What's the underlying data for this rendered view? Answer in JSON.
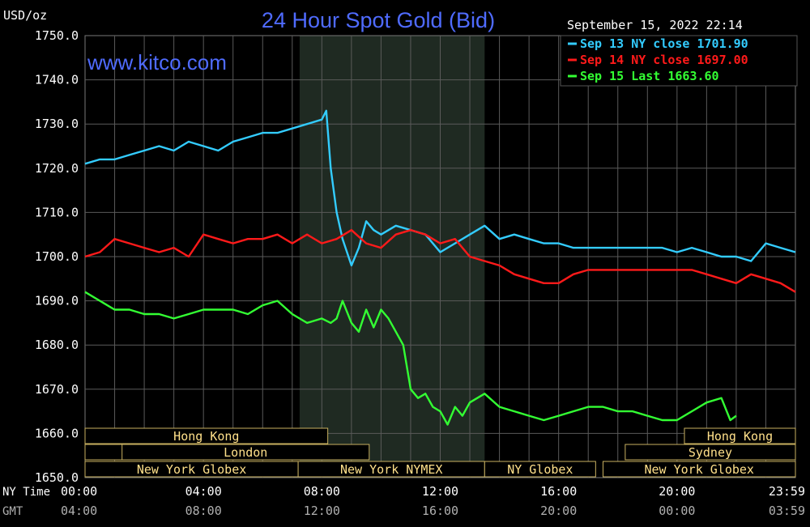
{
  "chart_data": {
    "type": "line",
    "title": "24 Hour Spot Gold (Bid)",
    "ylabel": "USD/oz",
    "watermark": "www.kitco.com",
    "timestamp": "September 15, 2022 22:14",
    "ylim": [
      1650,
      1750
    ],
    "y_ticks": [
      "1750.0",
      "1740.0",
      "1730.0",
      "1720.0",
      "1710.0",
      "1700.0",
      "1690.0",
      "1680.0",
      "1670.0",
      "1660.0",
      "1650.0"
    ],
    "xlim": [
      0,
      24
    ],
    "x_ticks": [
      0,
      4,
      8,
      12,
      16,
      20,
      23.983
    ],
    "x_axis_rows": [
      {
        "label": "NY Time",
        "ticks": [
          "00:00",
          "04:00",
          "08:00",
          "12:00",
          "16:00",
          "20:00",
          "23:59"
        ]
      },
      {
        "label": "GMT",
        "ticks": [
          "04:00",
          "08:00",
          "12:00",
          "16:00",
          "20:00",
          "00:00",
          "03:59"
        ]
      }
    ],
    "legend": [
      {
        "text": "Sep 13 NY close 1701.90",
        "color": "#33ccff"
      },
      {
        "text": "Sep 14 NY close 1697.00",
        "color": "#ff1a1a"
      },
      {
        "text": "Sep 15 Last 1663.60",
        "color": "#33ff33"
      }
    ],
    "legend_position": "top-right",
    "grid": true,
    "shaded_session": [
      7.25,
      13.5
    ],
    "sessions": [
      {
        "label": "Hong Kong",
        "row": 0,
        "start": 0,
        "end": 8.2
      },
      {
        "label": "London",
        "row": 1,
        "start": 0,
        "end": 9.6,
        "divider": 1.25,
        "text_at": 9.5
      },
      {
        "label": "New York Globex",
        "row": 2,
        "start": 0,
        "end": 7.2
      },
      {
        "label": "New York NYMEX",
        "row": 2,
        "start": 7.2,
        "end": 13.5
      },
      {
        "label": "NY Globex",
        "row": 2,
        "start": 13.5,
        "end": 17.25
      },
      {
        "label": "New York Globex",
        "row": 2,
        "start": 17.5,
        "end": 24
      },
      {
        "label": "Sydney",
        "row": 1,
        "start": 18.25,
        "end": 24
      },
      {
        "label": "Hong Kong",
        "row": 0,
        "start": 20.25,
        "end": 24
      }
    ],
    "series": [
      {
        "name": "Sep 13",
        "color": "#33ccff",
        "x": [
          0,
          0.5,
          1,
          1.5,
          2,
          2.5,
          3,
          3.5,
          4,
          4.5,
          5,
          5.5,
          6,
          6.5,
          7,
          7.5,
          8,
          8.15,
          8.3,
          8.5,
          8.7,
          9,
          9.25,
          9.5,
          9.75,
          10,
          10.5,
          11,
          11.5,
          12,
          12.5,
          13,
          13.5,
          14,
          14.5,
          15,
          15.5,
          16,
          16.5,
          17,
          17.5,
          18,
          18.5,
          19,
          19.5,
          20,
          20.5,
          21,
          21.5,
          22,
          22.5,
          23,
          23.5,
          24
        ],
        "y": [
          1721,
          1722,
          1722,
          1723,
          1724,
          1725,
          1724,
          1726,
          1725,
          1724,
          1726,
          1727,
          1728,
          1728,
          1729,
          1730,
          1731,
          1733,
          1720,
          1710,
          1704,
          1698,
          1702,
          1708,
          1706,
          1705,
          1707,
          1706,
          1705,
          1701,
          1703,
          1705,
          1707,
          1704,
          1705,
          1704,
          1703,
          1703,
          1702,
          1702,
          1702,
          1702,
          1702,
          1702,
          1702,
          1701,
          1702,
          1701,
          1700,
          1700,
          1699,
          1703,
          1702,
          1701
        ]
      },
      {
        "name": "Sep 14",
        "color": "#ff1a1a",
        "x": [
          0,
          0.5,
          1,
          1.5,
          2,
          2.5,
          3,
          3.5,
          4,
          4.5,
          5,
          5.5,
          6,
          6.5,
          7,
          7.5,
          8,
          8.5,
          9,
          9.5,
          10,
          10.5,
          11,
          11.5,
          12,
          12.5,
          13,
          13.5,
          14,
          14.5,
          15,
          15.5,
          16,
          16.5,
          17,
          17.5,
          18,
          18.5,
          19,
          19.5,
          20,
          20.5,
          21,
          21.5,
          22,
          22.5,
          23,
          23.5,
          24
        ],
        "y": [
          1700,
          1701,
          1704,
          1703,
          1702,
          1701,
          1702,
          1700,
          1705,
          1704,
          1703,
          1704,
          1704,
          1705,
          1703,
          1705,
          1703,
          1704,
          1706,
          1703,
          1702,
          1705,
          1706,
          1705,
          1703,
          1704,
          1700,
          1699,
          1698,
          1696,
          1695,
          1694,
          1694,
          1696,
          1697,
          1697,
          1697,
          1697,
          1697,
          1697,
          1697,
          1697,
          1696,
          1695,
          1694,
          1696,
          1695,
          1694,
          1692
        ]
      },
      {
        "name": "Sep 15",
        "color": "#33ff33",
        "x": [
          0,
          0.5,
          1,
          1.5,
          2,
          2.5,
          3,
          3.5,
          4,
          4.5,
          5,
          5.5,
          6,
          6.5,
          7,
          7.5,
          8,
          8.3,
          8.5,
          8.7,
          9,
          9.25,
          9.5,
          9.75,
          10,
          10.25,
          10.5,
          10.75,
          11,
          11.25,
          11.5,
          11.75,
          12,
          12.25,
          12.5,
          12.75,
          13,
          13.5,
          14,
          14.5,
          15,
          15.5,
          16,
          16.5,
          17,
          17.5,
          18,
          18.5,
          19,
          19.5,
          20,
          20.5,
          21,
          21.5,
          21.8,
          22
        ],
        "y": [
          1692,
          1690,
          1688,
          1688,
          1687,
          1687,
          1686,
          1687,
          1688,
          1688,
          1688,
          1687,
          1689,
          1690,
          1687,
          1685,
          1686,
          1685,
          1686,
          1690,
          1685,
          1683,
          1688,
          1684,
          1688,
          1686,
          1683,
          1680,
          1670,
          1668,
          1669,
          1666,
          1665,
          1662,
          1666,
          1664,
          1667,
          1669,
          1666,
          1665,
          1664,
          1663,
          1664,
          1665,
          1666,
          1666,
          1665,
          1665,
          1664,
          1663,
          1663,
          1665,
          1667,
          1668,
          1663,
          1664
        ]
      }
    ]
  }
}
